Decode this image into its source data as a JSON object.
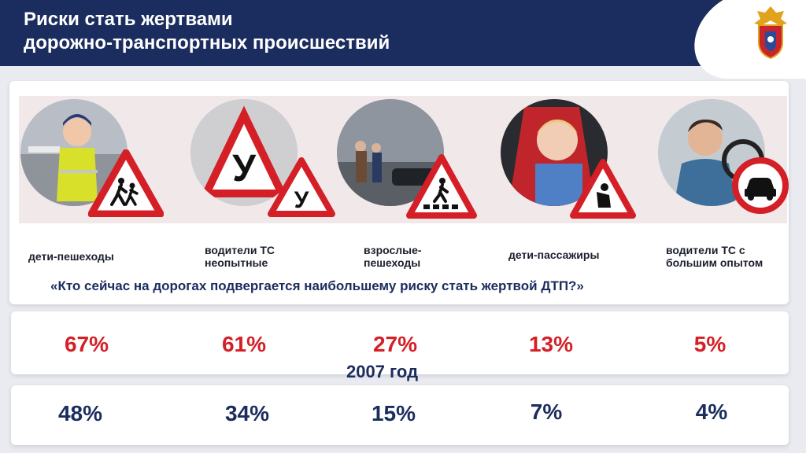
{
  "header": {
    "title": "Риски стать жертвами\nдорожно-транспортных происшествий"
  },
  "categories": [
    {
      "label": "дети-пешеходы",
      "icon": "children-crossing-sign-icon"
    },
    {
      "label": "водители ТС\nнеопытные",
      "icon": "learner-driver-sign-icon"
    },
    {
      "label": "взрослые-\nпешеходы",
      "icon": "pedestrian-crossing-sign-icon"
    },
    {
      "label": "дети-пассажиры",
      "icon": "child-seat-sign-icon"
    },
    {
      "label": "водители ТС с\nбольшим опытом",
      "icon": "no-cars-sign-icon"
    }
  ],
  "question": "«Кто сейчас на дорогах подвергается наибольшему риску стать жертвой ДТП?»",
  "year_label": "2007 год",
  "current_values": [
    "67%",
    "61%",
    "27%",
    "13%",
    "5%"
  ],
  "year2007_values": [
    "48%",
    "34%",
    "15%",
    "7%",
    "4%"
  ],
  "colors": {
    "header": "#1b2c5e",
    "accent_red": "#d41f26",
    "navy": "#1b2c5e"
  }
}
